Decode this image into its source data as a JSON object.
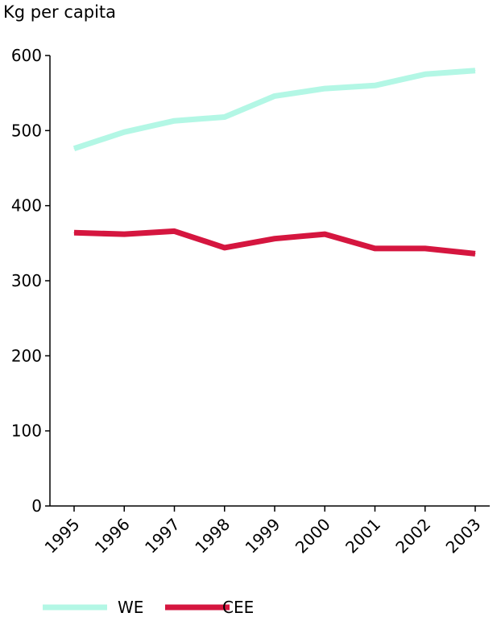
{
  "chart_data": {
    "type": "line",
    "title": "",
    "ylabel": "Kg per capita",
    "xlabel": "",
    "x": [
      "1995",
      "1996",
      "1997",
      "1998",
      "1999",
      "2000",
      "2001",
      "2002",
      "2003"
    ],
    "ylim": [
      0,
      600
    ],
    "yticks": [
      0,
      100,
      200,
      300,
      400,
      500,
      600
    ],
    "grid": false,
    "legend": "bottom",
    "series": [
      {
        "name": "WE",
        "color": "#b3f7e5",
        "values": [
          476,
          498,
          513,
          518,
          546,
          556,
          560,
          575,
          580
        ]
      },
      {
        "name": "CEE",
        "color": "#d5163f",
        "values": [
          364,
          362,
          366,
          344,
          356,
          362,
          343,
          343,
          336
        ]
      }
    ]
  }
}
